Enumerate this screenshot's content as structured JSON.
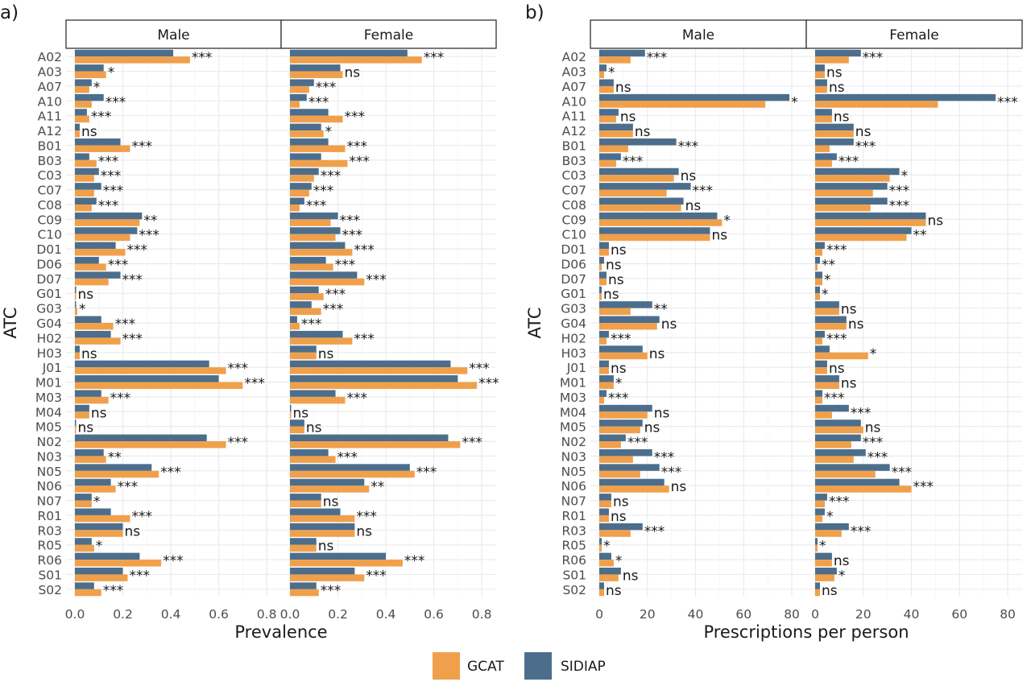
{
  "colors": {
    "GCAT": "#F0A04B",
    "SIDIAP": "#4C6E8C"
  },
  "legend": [
    {
      "key": "GCAT",
      "label": "GCAT"
    },
    {
      "key": "SIDIAP",
      "label": "SIDIAP"
    }
  ],
  "chart_data": [
    {
      "tag": "a)",
      "type": "bar",
      "orientation": "horizontal",
      "ylabel": "ATC",
      "xlabel": "Prevalence",
      "xlim": [
        0,
        0.85
      ],
      "xticks": [
        0.0,
        0.2,
        0.4,
        0.6,
        0.8
      ],
      "xtick_labels": [
        "0.0",
        "0.2",
        "0.4",
        "0.6",
        "0.8"
      ],
      "grid": true,
      "categories": [
        "A02",
        "A03",
        "A07",
        "A10",
        "A11",
        "A12",
        "B01",
        "B03",
        "C03",
        "C07",
        "C08",
        "C09",
        "C10",
        "D01",
        "D06",
        "D07",
        "G01",
        "G03",
        "G04",
        "H02",
        "H03",
        "J01",
        "M01",
        "M03",
        "M04",
        "M05",
        "N02",
        "N03",
        "N05",
        "N06",
        "N07",
        "R01",
        "R03",
        "R05",
        "R06",
        "S01",
        "S02"
      ],
      "facets": [
        {
          "label": "Male",
          "SIDIAP": [
            0.41,
            0.12,
            0.07,
            0.12,
            0.05,
            0.02,
            0.19,
            0.06,
            0.1,
            0.11,
            0.09,
            0.28,
            0.26,
            0.17,
            0.1,
            0.19,
            0.005,
            0.005,
            0.11,
            0.15,
            0.02,
            0.56,
            0.6,
            0.11,
            0.06,
            0.005,
            0.55,
            0.12,
            0.32,
            0.15,
            0.07,
            0.15,
            0.2,
            0.07,
            0.27,
            0.2,
            0.08
          ],
          "GCAT": [
            0.48,
            0.13,
            0.06,
            0.07,
            0.06,
            0.02,
            0.23,
            0.09,
            0.08,
            0.08,
            0.07,
            0.27,
            0.23,
            0.21,
            0.13,
            0.14,
            0.005,
            0.01,
            0.16,
            0.19,
            0.02,
            0.63,
            0.7,
            0.14,
            0.06,
            0.005,
            0.63,
            0.13,
            0.35,
            0.17,
            0.07,
            0.23,
            0.2,
            0.08,
            0.36,
            0.22,
            0.11
          ],
          "sig": [
            "***",
            "*",
            "*",
            "***",
            "***",
            "ns",
            "***",
            "***",
            "***",
            "***",
            "***",
            "**",
            "***",
            "***",
            "***",
            "***",
            "ns",
            "*",
            "***",
            "***",
            "ns",
            "***",
            "***",
            "***",
            "ns",
            "ns",
            "***",
            "**",
            "***",
            "***",
            "*",
            "***",
            "ns",
            "*",
            "***",
            "***",
            "***"
          ]
        },
        {
          "label": "Female",
          "SIDIAP": [
            0.49,
            0.21,
            0.1,
            0.07,
            0.16,
            0.13,
            0.16,
            0.13,
            0.12,
            0.09,
            0.06,
            0.2,
            0.21,
            0.23,
            0.15,
            0.28,
            0.12,
            0.09,
            0.03,
            0.22,
            0.11,
            0.67,
            0.7,
            0.19,
            0.005,
            0.06,
            0.66,
            0.16,
            0.5,
            0.31,
            0.13,
            0.21,
            0.27,
            0.11,
            0.4,
            0.27,
            0.11
          ],
          "GCAT": [
            0.55,
            0.22,
            0.08,
            0.04,
            0.22,
            0.14,
            0.23,
            0.24,
            0.1,
            0.08,
            0.04,
            0.17,
            0.19,
            0.26,
            0.18,
            0.31,
            0.14,
            0.13,
            0.04,
            0.26,
            0.11,
            0.74,
            0.78,
            0.23,
            0.005,
            0.06,
            0.71,
            0.19,
            0.52,
            0.33,
            0.13,
            0.27,
            0.27,
            0.11,
            0.47,
            0.31,
            0.12
          ],
          "sig": [
            "***",
            "ns",
            "***",
            "***",
            "***",
            "*",
            "***",
            "***",
            "***",
            "***",
            "***",
            "***",
            "***",
            "***",
            "***",
            "***",
            "***",
            "***",
            "***",
            "***",
            "ns",
            "***",
            "***",
            "***",
            "ns",
            "ns",
            "***",
            "***",
            "***",
            "**",
            "ns",
            "***",
            "ns",
            "ns",
            "***",
            "***",
            "***"
          ]
        }
      ]
    },
    {
      "tag": "b)",
      "type": "bar",
      "orientation": "horizontal",
      "ylabel": "ATC",
      "xlabel": "Prescriptions per person",
      "xlim": [
        0,
        85
      ],
      "xticks": [
        0,
        20,
        40,
        60,
        80
      ],
      "xtick_labels": [
        "0",
        "20",
        "40",
        "60",
        "80"
      ],
      "grid": true,
      "categories": [
        "A02",
        "A03",
        "A07",
        "A10",
        "A11",
        "A12",
        "B01",
        "B03",
        "C03",
        "C07",
        "C08",
        "C09",
        "C10",
        "D01",
        "D06",
        "D07",
        "G01",
        "G03",
        "G04",
        "H02",
        "H03",
        "J01",
        "M01",
        "M03",
        "M04",
        "M05",
        "N02",
        "N03",
        "N05",
        "N06",
        "N07",
        "R01",
        "R03",
        "R05",
        "R06",
        "S01",
        "S02"
      ],
      "facets": [
        {
          "label": "Male",
          "SIDIAP": [
            19,
            3,
            6,
            79,
            8,
            14,
            32,
            9,
            33,
            38,
            35,
            49,
            46,
            4,
            2,
            3,
            1,
            22,
            25,
            4,
            18,
            4,
            6,
            3,
            22,
            18,
            11,
            22,
            25,
            27,
            5,
            4,
            18,
            1,
            5,
            9,
            2
          ],
          "GCAT": [
            13,
            2,
            6,
            69,
            7,
            14,
            12,
            7,
            31,
            28,
            34,
            51,
            46,
            4,
            1,
            3,
            1,
            13,
            24,
            3,
            20,
            4,
            6,
            2,
            20,
            17,
            9,
            14,
            17,
            29,
            5,
            4,
            13,
            1,
            6,
            8,
            2
          ],
          "sig": [
            "***",
            "*",
            "ns",
            "*",
            "ns",
            "ns",
            "***",
            "***",
            "ns",
            "***",
            "ns",
            "*",
            "ns",
            "ns",
            "ns",
            "ns",
            "ns",
            "**",
            "ns",
            "***",
            "ns",
            "ns",
            "*",
            "***",
            "ns",
            "ns",
            "***",
            "***",
            "***",
            "ns",
            "ns",
            "ns",
            "***",
            "*",
            "*",
            "ns",
            "ns"
          ]
        },
        {
          "label": "Female",
          "SIDIAP": [
            19,
            4,
            5,
            75,
            7,
            16,
            16,
            9,
            35,
            30,
            30,
            46,
            40,
            4,
            2,
            3,
            2,
            10,
            13,
            4,
            6,
            5,
            10,
            3,
            14,
            19,
            19,
            21,
            31,
            35,
            5,
            4,
            14,
            1,
            7,
            9,
            2
          ],
          "GCAT": [
            14,
            4,
            5,
            51,
            7,
            16,
            6,
            7,
            31,
            24,
            23,
            46,
            38,
            3,
            1,
            3,
            2,
            10,
            13,
            3,
            22,
            5,
            10,
            3,
            7,
            20,
            15,
            16,
            25,
            40,
            4,
            3,
            11,
            1,
            7,
            8,
            2
          ],
          "sig": [
            "***",
            "ns",
            "ns",
            "***",
            "ns",
            "ns",
            "***",
            "***",
            "*",
            "***",
            "***",
            "ns",
            "**",
            "***",
            "**",
            "*",
            "*",
            "ns",
            "ns",
            "***",
            "*",
            "ns",
            "ns",
            "***",
            "***",
            "ns",
            "***",
            "***",
            "***",
            "***",
            "***",
            "*",
            "***",
            "*",
            "ns",
            "*",
            "ns"
          ]
        }
      ]
    }
  ]
}
